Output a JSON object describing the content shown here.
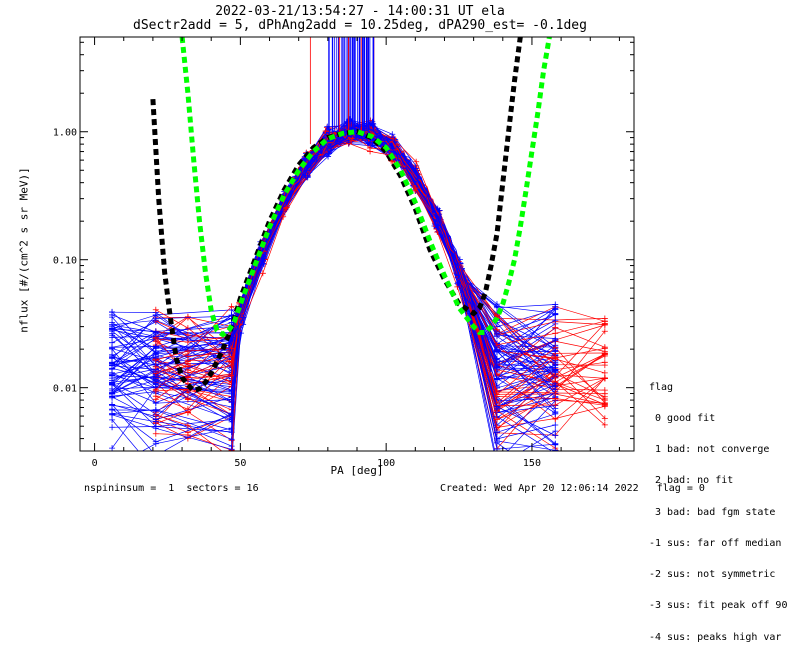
{
  "chart_data": {
    "type": "line",
    "title": "2022-03-21/13:54:27 - 14:00:31 UT ela",
    "subtitle": "dSectr2add = 5, dPhAng2add = 10.25deg, dPA290_est=  -0.1deg",
    "xlabel": "PA [deg]",
    "ylabel": "nflux [#/(cm^2 s sr MeV)]",
    "xlim": [
      -5,
      185
    ],
    "ylim": [
      0.0032,
      5.5
    ],
    "yscale": "log",
    "x_ticks": [
      0,
      50,
      100,
      150
    ],
    "x_tick_labels": [
      "0",
      "50",
      "100",
      "150"
    ],
    "y_ticks": [
      0.01,
      0.1,
      1.0
    ],
    "y_tick_labels": [
      "0.01",
      "0.10",
      "1.00"
    ],
    "grid": false,
    "colors": {
      "blue": "#0000ff",
      "red": "#ff0000",
      "black": "#000000",
      "green": "#00ff00"
    },
    "series": [
      {
        "color": "#000000",
        "style": "dashed-thick",
        "x": [
          20,
          22,
          24,
          26,
          28,
          30,
          32,
          34,
          36,
          38,
          40,
          42,
          44,
          46,
          48,
          50,
          55,
          60,
          65,
          70,
          75,
          80,
          85,
          90,
          95,
          100,
          105,
          110,
          115,
          120,
          125,
          130,
          132,
          134,
          136,
          138,
          140,
          142,
          144,
          146
        ],
        "y": [
          1.8,
          0.3,
          0.08,
          0.035,
          0.017,
          0.012,
          0.0105,
          0.0095,
          0.0098,
          0.011,
          0.013,
          0.016,
          0.02,
          0.026,
          0.035,
          0.05,
          0.1,
          0.2,
          0.35,
          0.55,
          0.75,
          0.9,
          0.97,
          1.0,
          0.9,
          0.7,
          0.45,
          0.25,
          0.12,
          0.07,
          0.045,
          0.038,
          0.042,
          0.055,
          0.09,
          0.16,
          0.4,
          1.0,
          2.5,
          5.5
        ]
      },
      {
        "color": "#00ff00",
        "style": "dashed-thick",
        "x": [
          30,
          32,
          34,
          36,
          38,
          40,
          42,
          44,
          46,
          48,
          50,
          55,
          60,
          65,
          70,
          75,
          80,
          85,
          90,
          95,
          100,
          105,
          110,
          115,
          120,
          125,
          130,
          132,
          134,
          136,
          138,
          140,
          142,
          144,
          146,
          148,
          150,
          152,
          154,
          156
        ],
        "y": [
          5.5,
          2.0,
          0.6,
          0.2,
          0.08,
          0.04,
          0.028,
          0.026,
          0.028,
          0.033,
          0.045,
          0.09,
          0.18,
          0.32,
          0.5,
          0.7,
          0.88,
          0.97,
          1.0,
          0.92,
          0.75,
          0.5,
          0.28,
          0.14,
          0.075,
          0.042,
          0.03,
          0.027,
          0.027,
          0.03,
          0.035,
          0.045,
          0.065,
          0.1,
          0.18,
          0.35,
          0.7,
          1.4,
          3.0,
          5.5
        ]
      }
    ]
  },
  "legend": {
    "title": "flag",
    "entries": [
      " 0 good fit",
      " 1 bad: not converge",
      " 2 bad: no fit",
      " 3 bad: bad fgm state",
      "-1 sus: far off median",
      "-2 sus: not symmetric",
      "-3 sus: fit peak off 90",
      "-4 sus: peaks high var"
    ]
  },
  "footer": {
    "left": "nspininsum =  1  sectors = 16",
    "right": "Created: Wed Apr 20 12:06:14 2022   flag = 0"
  }
}
